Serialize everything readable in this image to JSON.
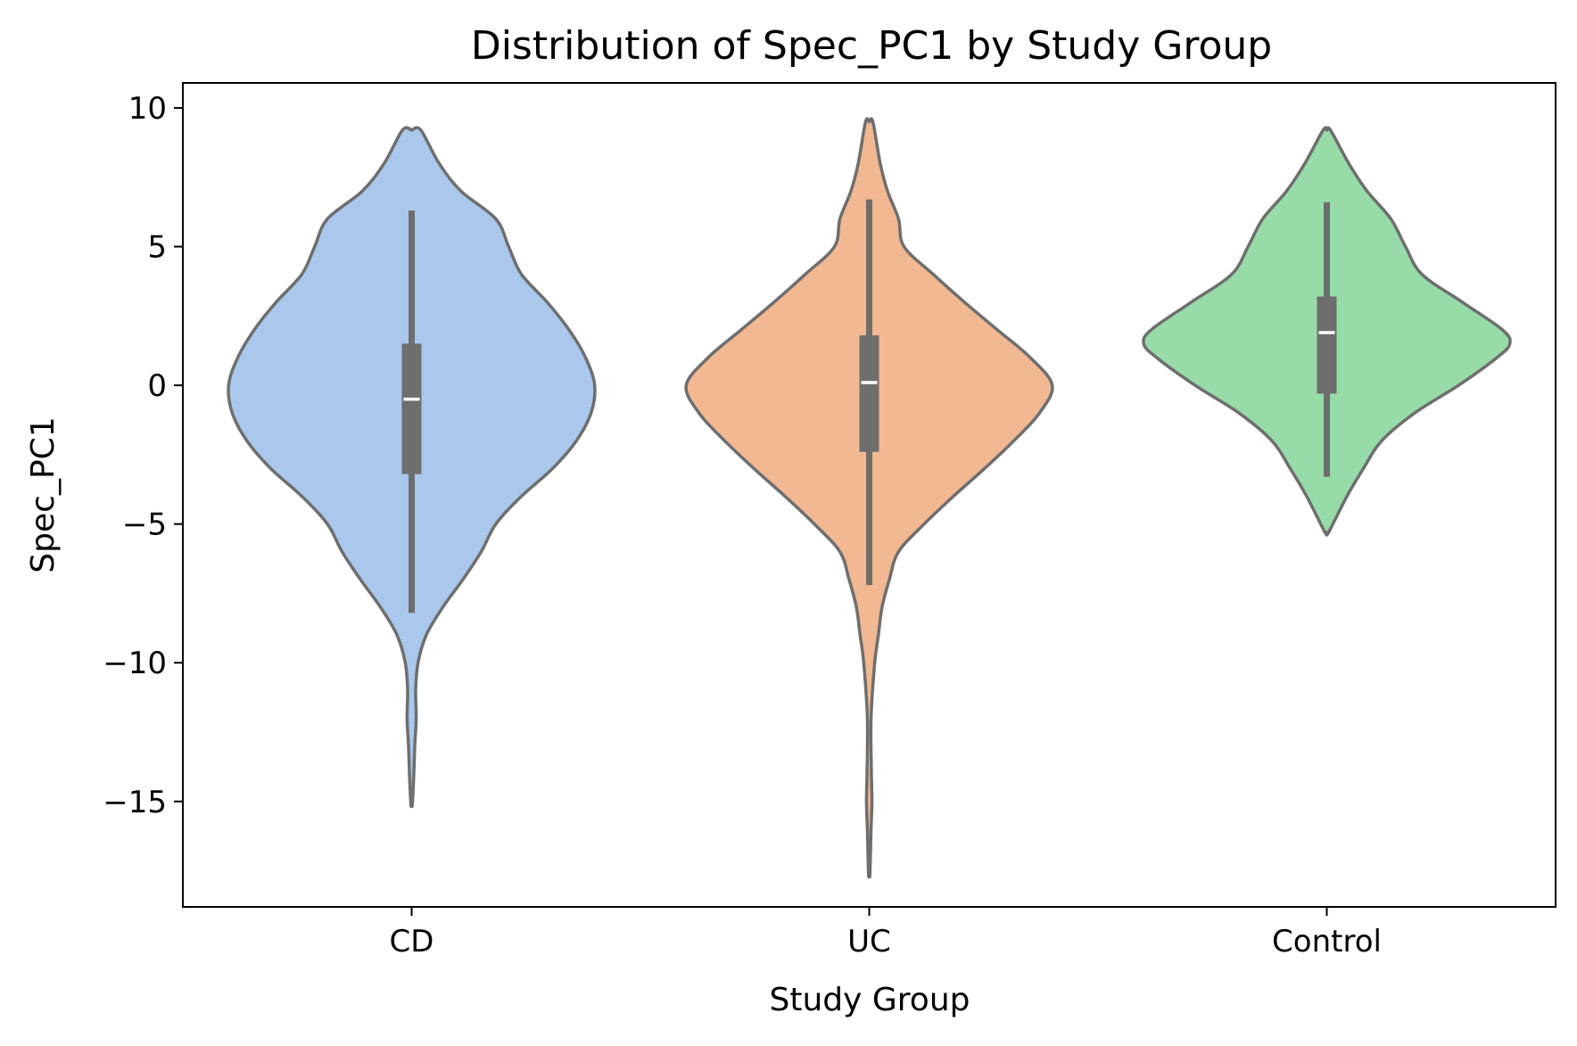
{
  "chart_data": {
    "type": "violin",
    "title": "Distribution of Spec_PC1 by Study Group",
    "xlabel": "Study Group",
    "ylabel": "Spec_PC1",
    "ylim": [
      -18.8,
      10.9
    ],
    "yticks": [
      10,
      5,
      0,
      -5,
      -10,
      -15
    ],
    "ytick_labels": [
      "10",
      "5",
      "0",
      "−5",
      "−10",
      "−15"
    ],
    "categories": [
      "CD",
      "UC",
      "Control"
    ],
    "grid": false,
    "legend": "none",
    "colors": {
      "CD": "#a9c8ec",
      "UC": "#f1b892",
      "Control": "#97dba8",
      "outline": "#6e6e6e",
      "box": "#6e6e6e",
      "median": "#ffffff"
    },
    "series": [
      {
        "category": "CD",
        "min": -15.1,
        "max": 9.2,
        "whisker_low": -8.2,
        "q1": -3.2,
        "median": -0.5,
        "q3": 1.5,
        "whisker_high": 6.3,
        "density": [
          [
            9.2,
            0.05
          ],
          [
            8.0,
            0.15
          ],
          [
            7.0,
            0.27
          ],
          [
            6.0,
            0.46
          ],
          [
            5.0,
            0.53
          ],
          [
            4.0,
            0.6
          ],
          [
            3.0,
            0.74
          ],
          [
            2.0,
            0.86
          ],
          [
            1.0,
            0.95
          ],
          [
            0.0,
            1.0
          ],
          [
            -1.0,
            0.98
          ],
          [
            -2.0,
            0.9
          ],
          [
            -3.0,
            0.77
          ],
          [
            -4.0,
            0.6
          ],
          [
            -5.0,
            0.46
          ],
          [
            -6.0,
            0.38
          ],
          [
            -7.0,
            0.28
          ],
          [
            -8.0,
            0.17
          ],
          [
            -9.0,
            0.08
          ],
          [
            -10.0,
            0.035
          ],
          [
            -11.0,
            0.022
          ],
          [
            -12.0,
            0.025
          ],
          [
            -13.0,
            0.017
          ],
          [
            -14.0,
            0.012
          ],
          [
            -15.1,
            0.004
          ]
        ]
      },
      {
        "category": "UC",
        "min": -17.6,
        "max": 9.5,
        "whisker_low": -7.2,
        "q1": -2.4,
        "median": 0.1,
        "q3": 1.8,
        "whisker_high": 6.7,
        "density": [
          [
            9.5,
            0.02
          ],
          [
            8.0,
            0.06
          ],
          [
            7.0,
            0.1
          ],
          [
            6.0,
            0.16
          ],
          [
            5.0,
            0.19
          ],
          [
            4.0,
            0.35
          ],
          [
            3.0,
            0.52
          ],
          [
            2.0,
            0.7
          ],
          [
            1.0,
            0.88
          ],
          [
            0.0,
            1.0
          ],
          [
            -1.0,
            0.93
          ],
          [
            -2.0,
            0.79
          ],
          [
            -3.0,
            0.63
          ],
          [
            -4.0,
            0.46
          ],
          [
            -5.0,
            0.3
          ],
          [
            -6.0,
            0.16
          ],
          [
            -7.0,
            0.11
          ],
          [
            -8.0,
            0.07
          ],
          [
            -9.0,
            0.05
          ],
          [
            -10.0,
            0.03
          ],
          [
            -12.0,
            0.01
          ],
          [
            -14.0,
            0.012
          ],
          [
            -15.0,
            0.015
          ],
          [
            -16.0,
            0.01
          ],
          [
            -17.6,
            0.004
          ]
        ]
      },
      {
        "category": "Control",
        "min": -5.3,
        "max": 9.2,
        "whisker_low": -3.3,
        "q1": -0.3,
        "median": 1.9,
        "q3": 3.2,
        "whisker_high": 6.6,
        "density": [
          [
            9.2,
            0.02
          ],
          [
            8.0,
            0.12
          ],
          [
            7.0,
            0.22
          ],
          [
            6.0,
            0.35
          ],
          [
            5.0,
            0.43
          ],
          [
            4.0,
            0.52
          ],
          [
            3.0,
            0.74
          ],
          [
            2.0,
            0.96
          ],
          [
            1.5,
            1.0
          ],
          [
            1.0,
            0.93
          ],
          [
            0.0,
            0.72
          ],
          [
            -1.0,
            0.48
          ],
          [
            -2.0,
            0.3
          ],
          [
            -3.0,
            0.2
          ],
          [
            -4.0,
            0.11
          ],
          [
            -5.3,
            0.01
          ]
        ]
      }
    ]
  }
}
